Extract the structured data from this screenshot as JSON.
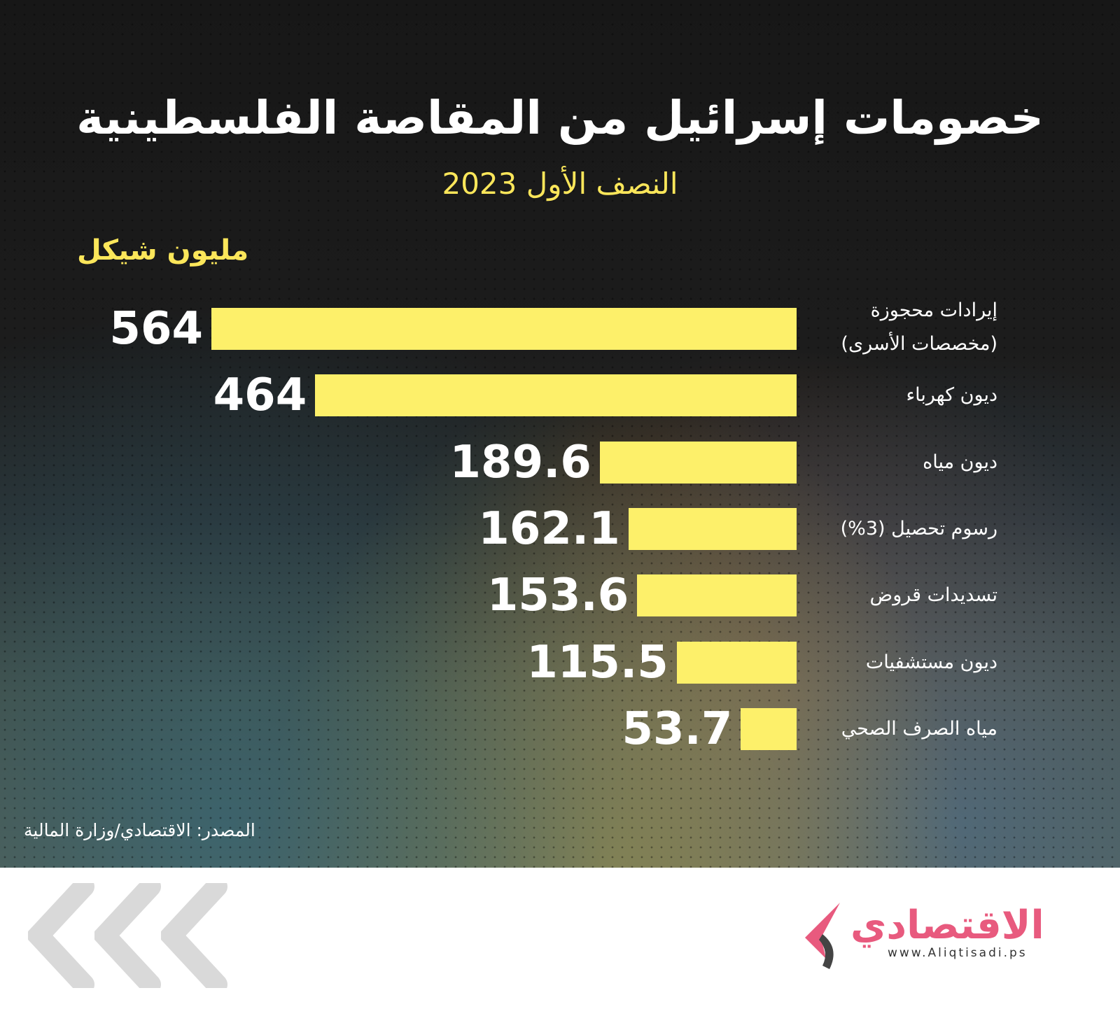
{
  "title": "خصومات إسرائيل من المقاصة الفلسطينية",
  "subtitle": "النصف الأول 2023",
  "source": "المصدر: الاقتصادي/وزارة المالية",
  "logo": {
    "name": "الاقتصادي",
    "url": "www.Aliqtisadi.ps"
  },
  "colors": {
    "bar": "#fdf06a",
    "accent": "#fbe65a",
    "brand": "#e85a7e"
  },
  "chart_data": {
    "type": "bar",
    "orientation": "horizontal",
    "title": "خصومات إسرائيل من المقاصة الفلسطينية",
    "subtitle": "النصف الأول 2023",
    "unit_label": "مليون شيكل",
    "categories": [
      "إيرادات محجوزة (مخصصات الأسرى)",
      "ديون كهرباء",
      "ديون مياه",
      "رسوم تحصيل (3%)",
      "تسديدات قروض",
      "ديون مستشفيات",
      "مياه الصرف الصحي"
    ],
    "value_labels": [
      "564",
      "464",
      "189.6",
      "162.1",
      "153.6",
      "115.5",
      "53.7"
    ],
    "values": [
      564,
      464,
      189.6,
      162.1,
      153.6,
      115.5,
      53.7
    ],
    "xlim": [
      0,
      564
    ],
    "grid": false
  }
}
